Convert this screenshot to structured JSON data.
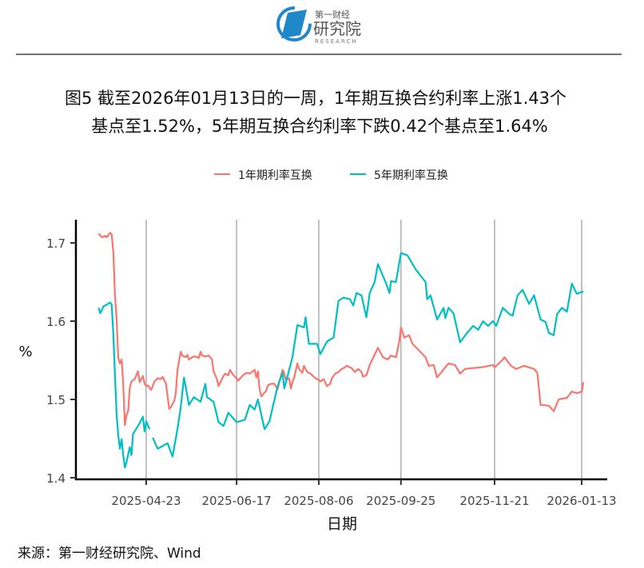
{
  "logo": {
    "brand_cn": "第一财经",
    "name_cn": "研究院",
    "name_en": "RESEARCH",
    "color": "#1e88c8"
  },
  "chart_data": {
    "type": "line",
    "title_line1": "图5  截至2026年01月13日的一周，1年期互换合约利率上涨1.43个",
    "title_line2": "基点至1.52%，5年期互换合约利率下跌0.42个基点至1.64%",
    "xlabel": "日期",
    "ylabel": "%",
    "x_unit": "days since 2025-04-23",
    "x_ticks": [
      {
        "day": 0,
        "label": "2025-04-23"
      },
      {
        "day": 55,
        "label": "2025-06-17"
      },
      {
        "day": 105,
        "label": "2025-08-06"
      },
      {
        "day": 155,
        "label": "2025-09-25"
      },
      {
        "day": 212,
        "label": "2025-11-21"
      },
      {
        "day": 265,
        "label": "2026-01-13"
      }
    ],
    "y_ticks": [
      {
        "value": 1.4,
        "label": "1.4"
      },
      {
        "value": 1.5,
        "label": "1.5"
      },
      {
        "value": 1.6,
        "label": "1.6"
      },
      {
        "value": 1.7,
        "label": "1.7"
      }
    ],
    "ylim": [
      1.394,
      1.731
    ],
    "xlim": [
      -43,
      280
    ],
    "grid": "vertical major x",
    "legend_position": "top",
    "source": "来源：第一财经研究院、Wind",
    "series": [
      {
        "name": "1年期利率互换",
        "color": "#f8766d",
        "points": [
          [
            -29,
            1.712
          ],
          [
            -27,
            1.707
          ],
          [
            -25,
            1.709
          ],
          [
            -24,
            1.707
          ],
          [
            -22,
            1.713
          ],
          [
            -21,
            1.711
          ],
          [
            -20,
            1.687
          ],
          [
            -19,
            1.633
          ],
          [
            -18,
            1.602
          ],
          [
            -17,
            1.553
          ],
          [
            -16,
            1.546
          ],
          [
            -15,
            1.551
          ],
          [
            -14,
            1.52
          ],
          [
            -13,
            1.467
          ],
          [
            -12,
            1.48
          ],
          [
            -11,
            1.485
          ],
          [
            -10,
            1.515
          ],
          [
            -9,
            1.523
          ],
          [
            -7,
            1.526
          ],
          [
            -5,
            1.536
          ],
          [
            -4,
            1.522
          ],
          [
            -2,
            1.53
          ],
          [
            -1,
            1.52
          ],
          [
            0,
            1.517
          ],
          [
            1,
            1.518
          ],
          [
            3,
            1.512
          ],
          [
            5,
            1.523
          ],
          [
            7,
            1.527
          ],
          [
            9,
            1.526
          ],
          [
            10,
            1.529
          ],
          [
            12,
            1.52
          ],
          [
            14,
            1.488
          ],
          [
            15,
            1.49
          ],
          [
            17,
            1.498
          ],
          [
            18,
            1.508
          ],
          [
            19,
            1.538
          ],
          [
            21,
            1.561
          ],
          [
            22,
            1.556
          ],
          [
            24,
            1.554
          ],
          [
            25,
            1.557
          ],
          [
            26,
            1.551
          ],
          [
            28,
            1.554
          ],
          [
            29,
            1.555
          ],
          [
            31,
            1.554
          ],
          [
            32,
            1.553
          ],
          [
            33,
            1.561
          ],
          [
            34,
            1.556
          ],
          [
            36,
            1.555
          ],
          [
            38,
            1.556
          ],
          [
            40,
            1.551
          ],
          [
            41,
            1.536
          ],
          [
            43,
            1.526
          ],
          [
            44,
            1.517
          ],
          [
            47,
            1.53
          ],
          [
            48,
            1.533
          ],
          [
            50,
            1.531
          ],
          [
            51,
            1.538
          ],
          [
            53,
            1.531
          ],
          [
            55,
            1.527
          ],
          [
            56,
            1.524
          ],
          [
            58,
            1.529
          ],
          [
            60,
            1.533
          ],
          [
            62,
            1.534
          ],
          [
            63,
            1.533
          ],
          [
            66,
            1.538
          ],
          [
            67,
            1.528
          ],
          [
            68,
            1.536
          ],
          [
            69,
            1.513
          ],
          [
            70,
            1.504
          ],
          [
            71,
            1.506
          ],
          [
            73,
            1.511
          ],
          [
            74,
            1.518
          ],
          [
            76,
            1.52
          ],
          [
            78,
            1.52
          ],
          [
            80,
            1.513
          ],
          [
            81,
            1.523
          ],
          [
            83,
            1.538
          ],
          [
            84,
            1.533
          ],
          [
            85,
            1.525
          ],
          [
            87,
            1.527
          ],
          [
            88,
            1.514
          ],
          [
            89,
            1.522
          ],
          [
            90,
            1.528
          ],
          [
            92,
            1.546
          ],
          [
            93,
            1.539
          ],
          [
            95,
            1.534
          ],
          [
            96,
            1.543
          ],
          [
            98,
            1.535
          ],
          [
            99,
            1.534
          ],
          [
            100,
            1.533
          ],
          [
            103,
            1.527
          ],
          [
            105,
            1.525
          ],
          [
            106,
            1.523
          ],
          [
            108,
            1.526
          ],
          [
            110,
            1.517
          ],
          [
            112,
            1.52
          ],
          [
            113,
            1.527
          ],
          [
            115,
            1.533
          ],
          [
            117,
            1.535
          ],
          [
            119,
            1.539
          ],
          [
            121,
            1.541
          ],
          [
            122,
            1.543
          ],
          [
            125,
            1.54
          ],
          [
            127,
            1.535
          ],
          [
            129,
            1.539
          ],
          [
            131,
            1.535
          ],
          [
            132,
            1.529
          ],
          [
            134,
            1.531
          ],
          [
            136,
            1.544
          ],
          [
            141,
            1.566
          ],
          [
            144,
            1.554
          ],
          [
            147,
            1.551
          ],
          [
            149,
            1.556
          ],
          [
            152,
            1.554
          ],
          [
            154,
            1.574
          ],
          [
            155,
            1.592
          ],
          [
            157,
            1.579
          ],
          [
            160,
            1.582
          ],
          [
            162,
            1.571
          ],
          [
            170,
            1.554
          ],
          [
            172,
            1.543
          ],
          [
            175,
            1.544
          ],
          [
            177,
            1.528
          ],
          [
            182,
            1.541
          ],
          [
            184,
            1.546
          ],
          [
            188,
            1.544
          ],
          [
            191,
            1.533
          ],
          [
            194,
            1.539
          ],
          [
            198,
            1.54
          ],
          [
            204,
            1.541
          ],
          [
            211,
            1.544
          ],
          [
            212,
            1.541
          ],
          [
            217,
            1.551
          ],
          [
            218,
            1.554
          ],
          [
            222,
            1.543
          ],
          [
            225,
            1.539
          ],
          [
            230,
            1.543
          ],
          [
            236,
            1.539
          ],
          [
            238,
            1.534
          ],
          [
            240,
            1.493
          ],
          [
            245,
            1.492
          ],
          [
            248,
            1.485
          ],
          [
            251,
            1.5
          ],
          [
            256,
            1.502
          ],
          [
            259,
            1.51
          ],
          [
            262,
            1.508
          ],
          [
            265,
            1.51
          ],
          [
            266,
            1.522
          ]
        ]
      },
      {
        "name": "5年期利率互换",
        "color": "#00bfc4",
        "points": [
          [
            -29,
            1.617
          ],
          [
            -28,
            1.61
          ],
          [
            -26,
            1.619
          ],
          [
            -24,
            1.621
          ],
          [
            -22,
            1.624
          ],
          [
            -21,
            1.621
          ],
          [
            -20,
            1.582
          ],
          [
            -19,
            1.53
          ],
          [
            -18,
            1.48
          ],
          [
            -17,
            1.454
          ],
          [
            -16,
            1.437
          ],
          [
            -15,
            1.449
          ],
          [
            -14,
            1.429
          ],
          [
            -13,
            1.413
          ],
          [
            -12,
            1.42
          ],
          [
            -10,
            1.439
          ],
          [
            -9,
            1.429
          ],
          [
            -8,
            1.456
          ],
          [
            -5,
            1.466
          ],
          [
            -2,
            1.478
          ],
          [
            -1,
            1.459
          ],
          [
            0,
            1.472
          ],
          [
            2,
            1.462
          ],
          null,
          [
            4,
            1.451
          ],
          [
            7,
            1.437
          ],
          [
            13,
            1.444
          ],
          [
            16,
            1.427
          ],
          [
            19,
            1.462
          ],
          [
            21,
            1.49
          ],
          [
            23,
            1.528
          ],
          [
            26,
            1.493
          ],
          [
            29,
            1.503
          ],
          [
            33,
            1.497
          ],
          [
            36,
            1.52
          ],
          [
            37,
            1.503
          ],
          [
            41,
            1.497
          ],
          [
            44,
            1.471
          ],
          [
            47,
            1.466
          ],
          [
            50,
            1.483
          ],
          [
            55,
            1.471
          ],
          [
            60,
            1.474
          ],
          [
            63,
            1.493
          ],
          [
            66,
            1.487
          ],
          [
            68,
            1.5
          ],
          [
            72,
            1.462
          ],
          [
            75,
            1.472
          ],
          [
            80,
            1.517
          ],
          [
            83,
            1.534
          ],
          [
            84,
            1.514
          ],
          [
            89,
            1.554
          ],
          [
            92,
            1.595
          ],
          [
            96,
            1.592
          ],
          [
            97,
            1.605
          ],
          [
            99,
            1.571
          ],
          [
            104,
            1.571
          ],
          [
            106,
            1.558
          ],
          [
            110,
            1.574
          ],
          [
            114,
            1.579
          ],
          [
            117,
            1.626
          ],
          [
            120,
            1.63
          ],
          [
            124,
            1.628
          ],
          [
            126,
            1.62
          ],
          [
            128,
            1.636
          ],
          [
            131,
            1.633
          ],
          [
            134,
            1.605
          ],
          [
            136,
            1.636
          ],
          [
            139,
            1.65
          ],
          [
            141,
            1.673
          ],
          [
            146,
            1.648
          ],
          [
            148,
            1.636
          ],
          [
            149,
            1.651
          ],
          [
            152,
            1.65
          ],
          [
            155,
            1.687
          ],
          [
            159,
            1.684
          ],
          [
            164,
            1.666
          ],
          [
            170,
            1.65
          ],
          [
            171,
            1.628
          ],
          [
            173,
            1.633
          ],
          [
            177,
            1.602
          ],
          [
            181,
            1.617
          ],
          [
            182,
            1.604
          ],
          [
            184,
            1.617
          ],
          [
            187,
            1.61
          ],
          [
            191,
            1.573
          ],
          [
            196,
            1.587
          ],
          [
            199,
            1.594
          ],
          [
            202,
            1.589
          ],
          [
            205,
            1.6
          ],
          [
            208,
            1.594
          ],
          [
            211,
            1.6
          ],
          [
            213,
            1.594
          ],
          [
            217,
            1.617
          ],
          [
            221,
            1.609
          ],
          [
            223,
            1.607
          ],
          [
            226,
            1.633
          ],
          [
            229,
            1.64
          ],
          [
            233,
            1.622
          ],
          [
            236,
            1.633
          ],
          [
            240,
            1.602
          ],
          [
            243,
            1.599
          ],
          [
            245,
            1.585
          ],
          [
            248,
            1.582
          ],
          [
            250,
            1.609
          ],
          [
            253,
            1.617
          ],
          [
            256,
            1.612
          ],
          [
            259,
            1.648
          ],
          [
            262,
            1.635
          ],
          [
            266,
            1.638
          ]
        ]
      }
    ]
  }
}
